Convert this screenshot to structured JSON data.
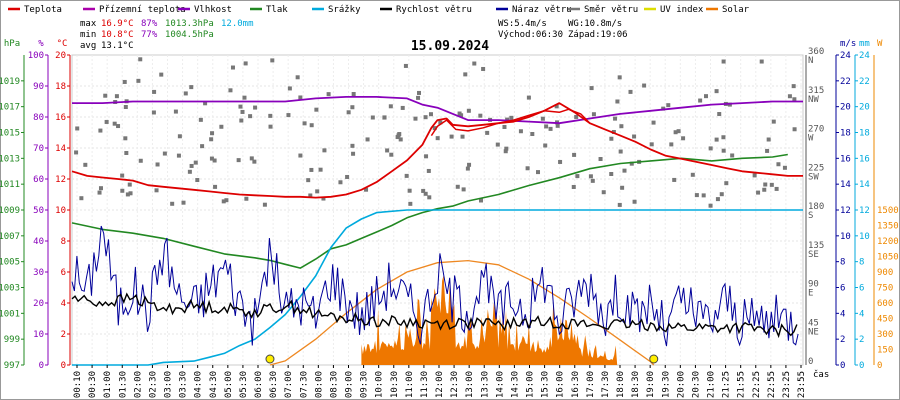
{
  "chart_data": {
    "type": "line",
    "title": "15.09.2024",
    "legend": [
      {
        "name": "Teplota",
        "color": "#dd0000"
      },
      {
        "name": "Přízemní teplota",
        "color": "#aa00aa"
      },
      {
        "name": "Vlhkost",
        "color": "#8800bb"
      },
      {
        "name": "Tlak",
        "color": "#228822"
      },
      {
        "name": "Srážky",
        "color": "#00aadd"
      },
      {
        "name": "Rychlost větru",
        "color": "#000000"
      },
      {
        "name": "Náraz větru",
        "color": "#000099"
      },
      {
        "name": "Směr větru",
        "color": "#777777"
      },
      {
        "name": "UV index",
        "color": "#dddd00"
      },
      {
        "name": "Solar",
        "color": "#ee7700"
      }
    ],
    "stats": {
      "max_label": "max",
      "max_temp": "16.9°C",
      "max_hum": "87%",
      "max_press": "1013.3hPa",
      "rain": "12.0mm",
      "min_label": "min",
      "min_temp": "10.8°C",
      "min_hum": "77%",
      "min_press": "1004.5hPa",
      "avg_label": "avg",
      "avg_temp": "13.1°C",
      "ws": "WS:5.4m/s",
      "wg": "WG:10.8m/s",
      "sunrise": "Východ:06:30",
      "sunset": "Západ:19:06"
    },
    "axes": {
      "hpa_unit": "hPa",
      "pct_unit": "%",
      "c_unit": "°C",
      "ms_unit": "m/s",
      "mm_unit": "mm",
      "w_unit": "W",
      "x_unit": "čas",
      "hpa_ticks": [
        "997",
        "999",
        "1001",
        "1003",
        "1005",
        "1007",
        "1009",
        "1011",
        "1013",
        "1015",
        "1017",
        "1019"
      ],
      "pct_ticks": [
        "0",
        "10",
        "20",
        "30",
        "40",
        "50",
        "60",
        "70",
        "80",
        "90",
        "100"
      ],
      "c_ticks": [
        "0",
        "2",
        "4",
        "6",
        "8",
        "10",
        "12",
        "14",
        "16",
        "18",
        "20"
      ],
      "dir_ticks": [
        "0",
        "45",
        "90",
        "135",
        "180",
        "225",
        "270",
        "315",
        "360"
      ],
      "dir_labels": [
        "",
        "NE",
        "E",
        "SE",
        "S",
        "SW",
        "W",
        "NW",
        "N"
      ],
      "ms_ticks": [
        "0",
        "2",
        "4",
        "6",
        "8",
        "10",
        "12",
        "14",
        "16",
        "18",
        "20",
        "22",
        "24"
      ],
      "mm_ticks": [
        "0",
        "2",
        "4",
        "6",
        "8",
        "10",
        "12",
        "14",
        "16",
        "18",
        "20",
        "22",
        "24"
      ],
      "w_ticks": [
        "0",
        "150",
        "300",
        "450",
        "600",
        "750",
        "900",
        "1050",
        "1200",
        "1350",
        "1500"
      ],
      "x_ticks": [
        "00:10",
        "00:30",
        "01:00",
        "01:30",
        "02:00",
        "02:30",
        "03:00",
        "03:30",
        "04:00",
        "04:30",
        "05:00",
        "05:30",
        "06:00",
        "06:30",
        "07:00",
        "07:30",
        "08:00",
        "08:30",
        "09:00",
        "09:30",
        "10:00",
        "10:30",
        "11:00",
        "11:30",
        "12:00",
        "12:30",
        "13:00",
        "13:30",
        "14:00",
        "14:30",
        "15:00",
        "15:30",
        "16:00",
        "16:30",
        "17:00",
        "17:30",
        "18:00",
        "18:30",
        "19:00",
        "19:30",
        "20:00",
        "20:30",
        "21:00",
        "21:25",
        "21:55",
        "22:25",
        "22:55",
        "23:25",
        "23:55"
      ]
    },
    "xlim": [
      0,
      24
    ],
    "ranges": {
      "temp_c": [
        0,
        20
      ],
      "pct": [
        0,
        100
      ],
      "hpa": [
        997,
        1021
      ],
      "ms": [
        0,
        24
      ],
      "mm": [
        0,
        24
      ],
      "dir": [
        0,
        360
      ],
      "w": [
        0,
        1500
      ]
    },
    "series": [
      {
        "name": "Teplota",
        "x": [
          0,
          0.5,
          1,
          1.5,
          2,
          2.5,
          3,
          3.5,
          4,
          4.5,
          5,
          5.5,
          6,
          6.5,
          7,
          7.5,
          8,
          8.5,
          9,
          9.5,
          10,
          10.5,
          11,
          11.5,
          11.8,
          12,
          12.3,
          12.5,
          13,
          13.5,
          14,
          14.5,
          15,
          15.5,
          16,
          16.5,
          17,
          17.5,
          18,
          18.5,
          19,
          19.5,
          20,
          20.5,
          21,
          21.5,
          22,
          22.5,
          23,
          23.5,
          24
        ],
        "values": [
          12.5,
          12.2,
          12.1,
          12,
          11.9,
          11.6,
          11.5,
          11.4,
          11.3,
          11.2,
          11.1,
          11,
          10.95,
          10.9,
          10.85,
          10.85,
          10.8,
          10.85,
          11,
          11.3,
          11.8,
          12.5,
          13.2,
          14.2,
          15.3,
          15.8,
          15.9,
          15.5,
          15.4,
          15.5,
          15.6,
          15.7,
          16,
          16.4,
          16.9,
          16.3,
          15.6,
          15.2,
          14.8,
          14.4,
          13.9,
          13.5,
          13.3,
          13.1,
          12.9,
          12.7,
          12.5,
          12.4,
          12.3,
          12.2,
          12.2
        ]
      },
      {
        "name": "Přízemní teplota",
        "x": [
          11.8,
          12,
          12.3,
          12.6,
          13,
          13.5,
          14,
          14.5,
          15,
          15.5,
          16,
          16.3,
          16.7,
          17
        ],
        "values": [
          14.8,
          15.4,
          15.8,
          15.2,
          15.1,
          15.3,
          15.6,
          15.8,
          16.1,
          16.4,
          16.3,
          16.5,
          16.2,
          15.6
        ]
      },
      {
        "name": "Vlhkost",
        "x": [
          0,
          1,
          2,
          3,
          4,
          5,
          6,
          7,
          8,
          9,
          10,
          11,
          11.5,
          12,
          13,
          14,
          15,
          16,
          17,
          18,
          19,
          20,
          21,
          22,
          23,
          24
        ],
        "values": [
          84.5,
          84.5,
          85,
          85,
          85,
          85,
          85,
          85,
          86,
          86.5,
          86.5,
          86,
          84,
          83,
          79,
          79,
          78.5,
          78,
          79.5,
          81,
          82,
          83,
          84,
          84.5,
          85,
          85
        ]
      },
      {
        "name": "Tlak",
        "x": [
          0,
          1,
          2,
          3,
          4,
          5,
          6,
          6.5,
          7,
          7.5,
          8,
          8.5,
          9,
          9.5,
          10,
          10.5,
          11,
          11.5,
          12,
          12.5,
          13,
          14,
          15,
          16,
          17,
          18,
          19,
          20,
          21,
          22,
          23,
          23.5
        ],
        "values": [
          1008,
          1007.5,
          1007.2,
          1006.8,
          1006.2,
          1005.6,
          1005.3,
          1005.1,
          1004.8,
          1004.5,
          1005.2,
          1006,
          1006.3,
          1006.8,
          1007.3,
          1007.8,
          1008.4,
          1008.8,
          1009.1,
          1009.3,
          1009.7,
          1010.2,
          1010.9,
          1011.5,
          1012.2,
          1012.6,
          1012.8,
          1013,
          1012.8,
          1013,
          1013.1,
          1013.3
        ]
      },
      {
        "name": "Srážky",
        "x": [
          0,
          2.5,
          3,
          4,
          4.5,
          5,
          5.5,
          6,
          6.5,
          7,
          7.5,
          8,
          8.5,
          9,
          9.5,
          10,
          11,
          12,
          13,
          14,
          15,
          16,
          17,
          18,
          19,
          20,
          21,
          22,
          23,
          24
        ],
        "values": [
          0,
          0,
          0.2,
          0.3,
          0.6,
          0.9,
          1.5,
          2,
          2.9,
          3.9,
          5.3,
          6.9,
          9.1,
          10.6,
          11.3,
          11.8,
          12,
          12,
          12,
          12,
          12,
          12,
          12,
          12,
          12,
          12,
          12,
          12,
          12,
          12
        ]
      },
      {
        "name": "Rychlost větru",
        "x": [
          0,
          1,
          2,
          3,
          4,
          5,
          6,
          7,
          7.5,
          8,
          9,
          10,
          11,
          12,
          13,
          14,
          15,
          16,
          17,
          18,
          19,
          20,
          21,
          22,
          23,
          24
        ],
        "values": [
          5.2,
          4.8,
          5.2,
          4.3,
          4.6,
          4.4,
          4.1,
          4.6,
          4.4,
          3.9,
          3.6,
          3.4,
          3.3,
          3.2,
          3.3,
          3.1,
          3.3,
          3.3,
          3.1,
          3.1,
          3.1,
          2.9,
          2.9,
          2.9,
          2.6,
          2.8
        ]
      },
      {
        "name": "Náraz větru",
        "x": [
          0,
          0.5,
          1,
          1.5,
          2,
          2.5,
          3,
          3.5,
          4,
          4.5,
          5,
          5.5,
          6,
          6.5,
          7,
          7.5,
          8,
          8.5,
          9,
          9.5,
          10,
          10.5,
          11,
          11.5,
          12,
          12.5,
          13,
          13.5,
          14,
          14.5,
          15,
          15.5,
          16,
          16.5,
          17,
          17.5,
          18,
          18.5,
          19,
          19.5,
          20,
          20.5,
          21,
          21.5,
          22,
          22.5,
          23,
          23.5,
          24
        ],
        "values": [
          7.5,
          5.5,
          10.8,
          4.5,
          6,
          4.2,
          9.2,
          5.3,
          4.5,
          6,
          7.7,
          4.9,
          3.2,
          8.8,
          4.2,
          5,
          3.6,
          7,
          5.2,
          3.8,
          5.2,
          6.6,
          4.9,
          3.4,
          7.1,
          5.2,
          4.3,
          6.5,
          3.9,
          5.2,
          4.3,
          6.9,
          3.4,
          5.2,
          6.5,
          3.9,
          5.6,
          3.4,
          5,
          2.4,
          5.2,
          3.6,
          3.6,
          5.2,
          3,
          3.6,
          3.4,
          3.6,
          2.8
        ]
      },
      {
        "name": "Solar",
        "x": [
          6.5,
          7,
          8,
          9,
          10,
          11,
          12,
          13,
          14,
          15,
          16,
          17,
          18,
          19,
          19.1
        ],
        "values": [
          0,
          40,
          250,
          500,
          730,
          900,
          990,
          1010,
          970,
          830,
          650,
          450,
          240,
          30,
          0
        ]
      }
    ],
    "uv_markers": [
      6.5,
      19.1
    ]
  }
}
